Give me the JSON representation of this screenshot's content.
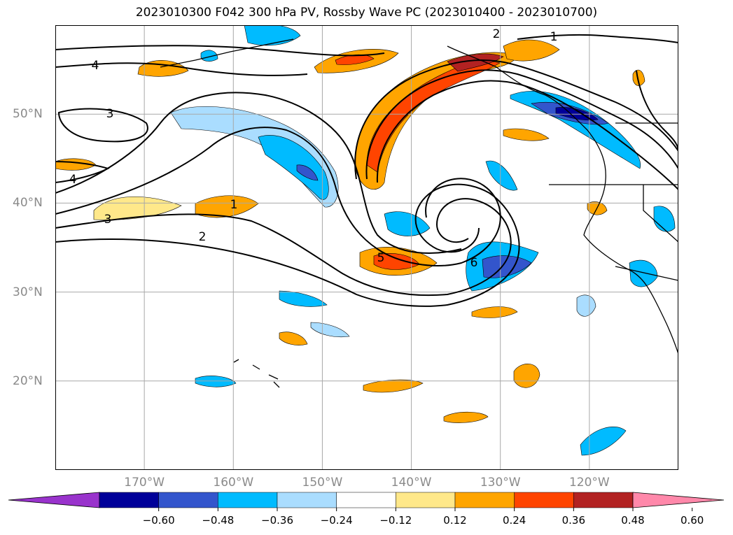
{
  "title": "2023010300 F042 300 hPa PV, Rossby Wave PC (2023010400 - 2023010700)",
  "axes": {
    "longitude_labels": [
      {
        "text": "170°W",
        "lon": -170
      },
      {
        "text": "160°W",
        "lon": -160
      },
      {
        "text": "150°W",
        "lon": -150
      },
      {
        "text": "140°W",
        "lon": -140
      },
      {
        "text": "130°W",
        "lon": -130
      },
      {
        "text": "120°W",
        "lon": -120
      }
    ],
    "latitude_labels": [
      {
        "text": "50°N",
        "lat": 50
      },
      {
        "text": "40°N",
        "lat": 40
      },
      {
        "text": "30°N",
        "lat": 30
      },
      {
        "text": "20°N",
        "lat": 20
      }
    ],
    "lon_range": [
      -180,
      -110
    ],
    "lat_range": [
      10,
      60
    ],
    "gridlines": true
  },
  "pv_contour_labels": [
    "1",
    "2",
    "3",
    "4",
    "5",
    "6"
  ],
  "colorbar": {
    "ticks": [
      "−0.60",
      "−0.48",
      "−0.36",
      "−0.24",
      "−0.12",
      "0.12",
      "0.24",
      "0.36",
      "0.48",
      "0.60"
    ],
    "bins": [
      {
        "color": "#9933cc"
      },
      {
        "color": "#000099"
      },
      {
        "color": "#3355cc"
      },
      {
        "color": "#00bbff"
      },
      {
        "color": "#aaddff"
      },
      {
        "color": "#ffffff"
      },
      {
        "color": "#ffe88a"
      },
      {
        "color": "#ffa500"
      },
      {
        "color": "#ff4400"
      },
      {
        "color": "#b22222"
      },
      {
        "color": "#ff88aa"
      }
    ],
    "extend": "both"
  }
}
